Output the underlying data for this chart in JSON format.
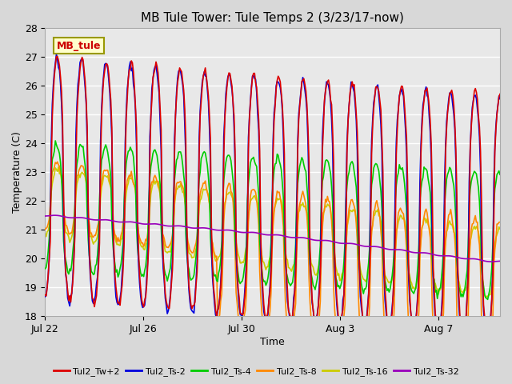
{
  "title": "MB Tule Tower: Tule Temps 2 (3/23/17-now)",
  "xlabel": "Time",
  "ylabel": "Temperature (C)",
  "ylim": [
    18.0,
    28.0
  ],
  "yticks": [
    18.0,
    19.0,
    20.0,
    21.0,
    22.0,
    23.0,
    24.0,
    25.0,
    26.0,
    27.0,
    28.0
  ],
  "xtick_labels": [
    "Jul 22",
    "Jul 26",
    "Jul 30",
    "Aug 3",
    "Aug 7"
  ],
  "xtick_positions": [
    0,
    4,
    8,
    12,
    16
  ],
  "total_days": 18,
  "fig_bg_color": "#d8d8d8",
  "plot_bg_color": "#e8e8e8",
  "grid_color": "#ffffff",
  "series_colors": {
    "Tul2_Tw+2": "#dd0000",
    "Tul2_Ts-2": "#0000dd",
    "Tul2_Ts-4": "#00cc00",
    "Tul2_Ts-8": "#ff8800",
    "Tul2_Ts-16": "#cccc00",
    "Tul2_Ts-32": "#9900bb"
  },
  "legend_label": "MB_tule",
  "legend_box_facecolor": "#ffffcc",
  "legend_box_edgecolor": "#999900",
  "legend_text_color": "#cc0000",
  "legend_fontsize": 8,
  "title_fontsize": 11,
  "tick_fontsize": 9,
  "axis_label_fontsize": 9
}
